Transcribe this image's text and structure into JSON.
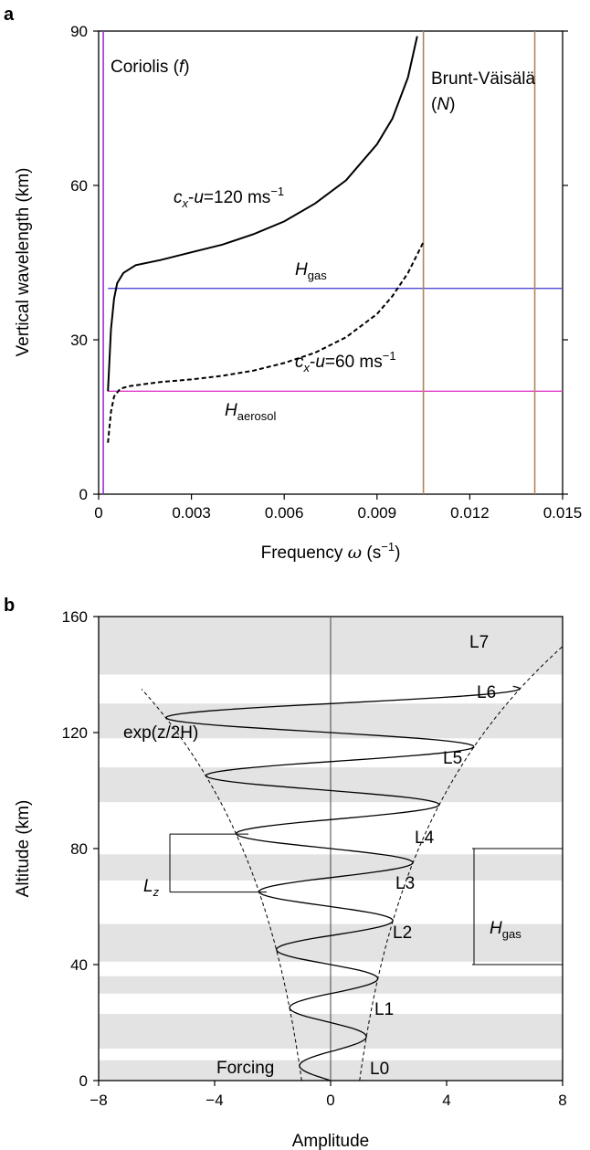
{
  "chart_data": [
    {
      "panel": "a",
      "type": "line",
      "xlabel": "Frequency ω (s⁻¹)",
      "ylabel": "Vertical wavelength (km)",
      "xlim": [
        0,
        0.015
      ],
      "ylim": [
        0,
        90
      ],
      "xticks": [
        "0",
        "0.003",
        "0.006",
        "0.009",
        "0.012",
        "0.015"
      ],
      "yticks": [
        "0",
        "30",
        "60",
        "90"
      ],
      "series": [
        {
          "name": "cx-u=120 ms−1",
          "style": "solid",
          "x": [
            0.0003,
            0.0004,
            0.0005,
            0.0006,
            0.0008,
            0.0012,
            0.002,
            0.003,
            0.004,
            0.005,
            0.006,
            0.007,
            0.008,
            0.009,
            0.0095,
            0.01,
            0.0103
          ],
          "y": [
            20,
            32,
            38,
            41,
            43,
            44.5,
            45.5,
            47,
            48.5,
            50.5,
            53,
            56.5,
            61,
            68,
            73,
            81,
            89
          ]
        },
        {
          "name": "cx-u=60 ms−1",
          "style": "dashed",
          "x": [
            0.0003,
            0.0004,
            0.0005,
            0.0007,
            0.001,
            0.002,
            0.003,
            0.004,
            0.005,
            0.006,
            0.007,
            0.008,
            0.009,
            0.0095,
            0.01,
            0.0105
          ],
          "y": [
            10,
            16,
            19,
            20.5,
            21,
            21.8,
            22.3,
            23,
            24,
            25.5,
            27.5,
            30.5,
            35,
            38.5,
            43,
            49
          ]
        }
      ],
      "vlines": [
        {
          "label": "Coriolis",
          "symbol": "f",
          "x": 0.00015,
          "color": "#9b30d9"
        },
        {
          "label": "Brunt-Väisälä",
          "symbol": "N",
          "x": 0.0105,
          "color": "#b5825a"
        },
        {
          "label": "",
          "x": 0.0141,
          "color": "#b5825a"
        }
      ],
      "hlines": [
        {
          "symbol": "H",
          "subscript": "gas",
          "y": 40,
          "color": "#4a4ad6"
        },
        {
          "symbol": "H",
          "subscript": "aerosol",
          "y": 20,
          "color": "#e040c8"
        }
      ],
      "annotations": {
        "coriolis_text": "Coriolis (",
        "coriolis_symbol": "f",
        "close_paren": ")",
        "bv_line1": "Brunt-Väisälä",
        "bv_open": "(",
        "bv_symbol": "N",
        "bv_close": ")",
        "c_symbol": "c",
        "x_sub": "x",
        "dash_u": "-",
        "u_symbol": "u",
        "label120": "=120 ms",
        "label60": "=60 ms",
        "minus1": "−1",
        "H": "H",
        "gas": "gas",
        "aerosol": "aerosol",
        "xlabel_text": "Frequency ",
        "omega": "ω",
        "xlabel_unit_open": " (s",
        "xlabel_unit_close": ")"
      },
      "grid": false
    },
    {
      "panel": "b",
      "type": "line",
      "xlabel": "Amplitude",
      "ylabel": "Altitude (km)",
      "xlim": [
        -8,
        8
      ],
      "ylim": [
        0,
        160
      ],
      "xticks": [
        "−8",
        "−4",
        "0",
        "4",
        "8"
      ],
      "yticks": [
        "0",
        "40",
        "80",
        "120",
        "160"
      ],
      "envelope_label": "exp(z/2H)",
      "envelope_amplitude_at_0": 1,
      "envelope_scale_height_km": 36,
      "wave": {
        "vertical_wavelength_km": 20,
        "z_max_km": 136
      },
      "shaded_layers": [
        {
          "label": "L0",
          "z": [
            0,
            7
          ]
        },
        {
          "label": "L1",
          "z": [
            11,
            23
          ]
        },
        {
          "label": "L2",
          "z": [
            30,
            36
          ]
        },
        {
          "label": "L3",
          "z": [
            41,
            54
          ]
        },
        {
          "label": "L4",
          "z": [
            69,
            78
          ]
        },
        {
          "label": "L5",
          "z": [
            96,
            108
          ]
        },
        {
          "label": "L6",
          "z": [
            118,
            130
          ]
        },
        {
          "label": "L7",
          "z": [
            140,
            160
          ]
        }
      ],
      "annotations": {
        "forcing": "Forcing",
        "L": "L",
        "z_sub": "z",
        "H": "H",
        "gas": "gas",
        "exp": "exp(z/2H)"
      },
      "markers": {
        "Lz": {
          "z_top": 85,
          "z_bottom": 65
        },
        "Hgas": {
          "z_top": 80,
          "z_bottom": 40
        }
      },
      "grid": false
    }
  ]
}
